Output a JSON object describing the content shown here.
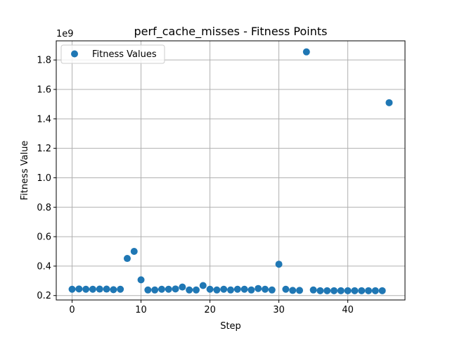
{
  "chart_data": {
    "type": "scatter",
    "title": "perf_cache_misses - Fitness Points",
    "xlabel": "Step",
    "ylabel": "Fitness Value",
    "y_offset_label": "1e9",
    "xlim": [
      -2.3,
      48.3
    ],
    "ylim": [
      0.17,
      1.93
    ],
    "xticks": [
      0,
      10,
      20,
      30,
      40
    ],
    "yticks": [
      0.2,
      0.4,
      0.6,
      0.8,
      1.0,
      1.2,
      1.4,
      1.6,
      1.8
    ],
    "xtick_labels": [
      "0",
      "10",
      "20",
      "30",
      "40"
    ],
    "ytick_labels": [
      "0.2",
      "0.4",
      "0.6",
      "0.8",
      "1.0",
      "1.2",
      "1.4",
      "1.6",
      "1.8"
    ],
    "grid": true,
    "legend_position": "upper-left",
    "color": "#1f77b4",
    "series": [
      {
        "name": "Fitness Values",
        "x": [
          0,
          1,
          2,
          3,
          4,
          5,
          6,
          7,
          8,
          9,
          10,
          11,
          12,
          13,
          14,
          15,
          16,
          17,
          18,
          19,
          20,
          21,
          22,
          23,
          24,
          25,
          26,
          27,
          28,
          29,
          30,
          31,
          32,
          33,
          34,
          35,
          36,
          37,
          38,
          39,
          40,
          41,
          42,
          43,
          44,
          45,
          46
        ],
        "y": [
          0.243,
          0.245,
          0.243,
          0.243,
          0.244,
          0.244,
          0.24,
          0.243,
          0.452,
          0.5,
          0.307,
          0.238,
          0.238,
          0.243,
          0.243,
          0.245,
          0.258,
          0.238,
          0.238,
          0.268,
          0.243,
          0.238,
          0.243,
          0.238,
          0.243,
          0.243,
          0.238,
          0.248,
          0.243,
          0.238,
          0.413,
          0.243,
          0.235,
          0.235,
          1.855,
          0.238,
          0.233,
          0.233,
          0.233,
          0.233,
          0.233,
          0.233,
          0.233,
          0.233,
          0.233,
          0.233,
          1.51
        ]
      }
    ]
  }
}
